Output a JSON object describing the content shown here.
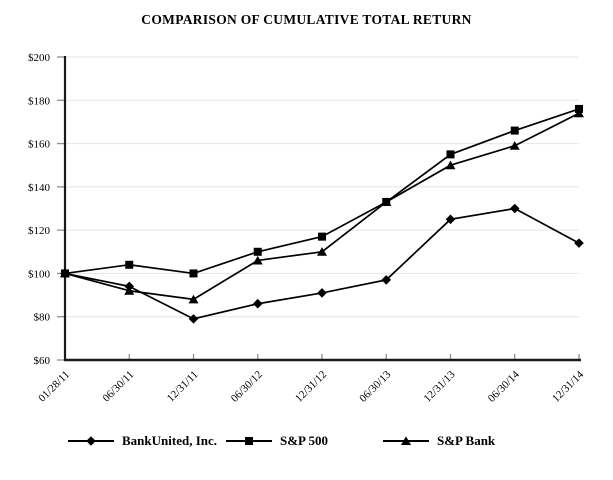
{
  "page": {
    "title": "COMPARISON OF CUMULATIVE TOTAL RETURN"
  },
  "chart_data": {
    "type": "line",
    "title": "COMPARISON OF CUMULATIVE TOTAL RETURN",
    "xlabel": "",
    "ylabel": "",
    "categories": [
      "01/28/11",
      "06/30/11",
      "12/31/11",
      "06/30/12",
      "12/31/12",
      "06/30/13",
      "12/31/13",
      "06/30/14",
      "12/31/14"
    ],
    "series": [
      {
        "name": "BankUnited, Inc.",
        "marker": "diamond",
        "values": [
          100,
          94,
          79,
          86,
          91,
          97,
          125,
          130,
          114
        ]
      },
      {
        "name": "S&P 500",
        "marker": "square",
        "values": [
          100,
          104,
          100,
          110,
          117,
          133,
          155,
          166,
          176
        ]
      },
      {
        "name": "S&P Bank",
        "marker": "triangle",
        "values": [
          100,
          92,
          88,
          106,
          110,
          133,
          150,
          159,
          174
        ]
      }
    ],
    "ylim": [
      60,
      200
    ],
    "y_tick_step": 20,
    "y_tick_labels": [
      "$200",
      "$180",
      "$160",
      "$140",
      "$120",
      "$100",
      "$80",
      "$60"
    ],
    "grid": true,
    "legend_position": "bottom",
    "colors": {
      "series": "#000000",
      "axis": "#1a1a1a",
      "gridline": "#e4e4e4",
      "tick": "#8f8f8f",
      "text": "#000000",
      "background": "#ffffff"
    }
  }
}
